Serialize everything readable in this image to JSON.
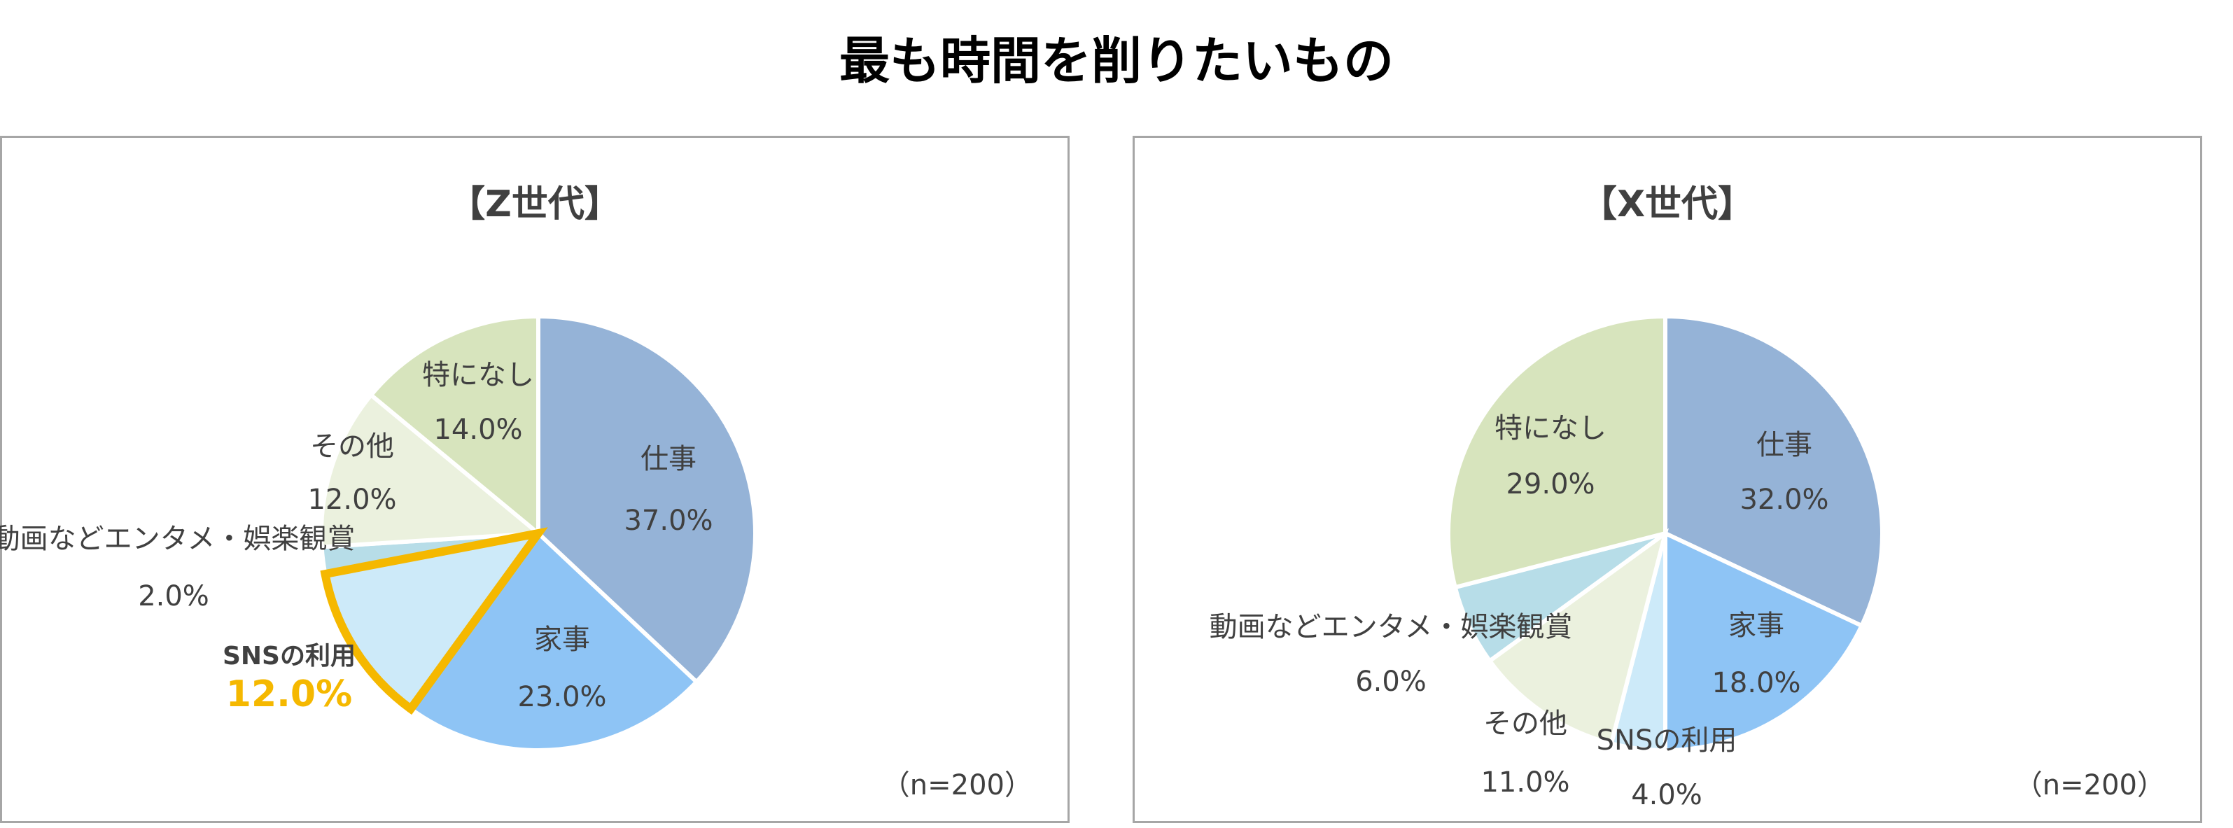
{
  "title": "最も時間を削りたいもの",
  "colors": {
    "仕事": "#95b3d7",
    "家事": "#8ec4f5",
    "SNSの利用": "#cdeaf9",
    "動画などエンタメ・娯楽観賞": "#b7dde8",
    "その他": "#ebf1de",
    "特になし": "#d7e4bd",
    "highlight": "#f5b800"
  },
  "chart_data": [
    {
      "type": "pie",
      "title": "【Z世代】",
      "note": "（n=200）",
      "categories": [
        "仕事",
        "家事",
        "SNSの利用",
        "動画などエンタメ・娯楽観賞",
        "その他",
        "特になし"
      ],
      "values": [
        37.0,
        23.0,
        12.0,
        2.0,
        12.0,
        14.0
      ],
      "value_labels": [
        "37.0%",
        "23.0%",
        "12.0%",
        "2.0%",
        "12.0%",
        "14.0%"
      ],
      "highlight": "SNSの利用"
    },
    {
      "type": "pie",
      "title": "【X世代】",
      "note": "（n=200）",
      "categories": [
        "仕事",
        "家事",
        "SNSの利用",
        "その他",
        "動画などエンタメ・娯楽観賞",
        "特になし"
      ],
      "values": [
        32.0,
        18.0,
        4.0,
        11.0,
        6.0,
        29.0
      ],
      "value_labels": [
        "32.0%",
        "18.0%",
        "4.0%",
        "11.0%",
        "6.0%",
        "29.0%"
      ],
      "highlight": ""
    }
  ]
}
